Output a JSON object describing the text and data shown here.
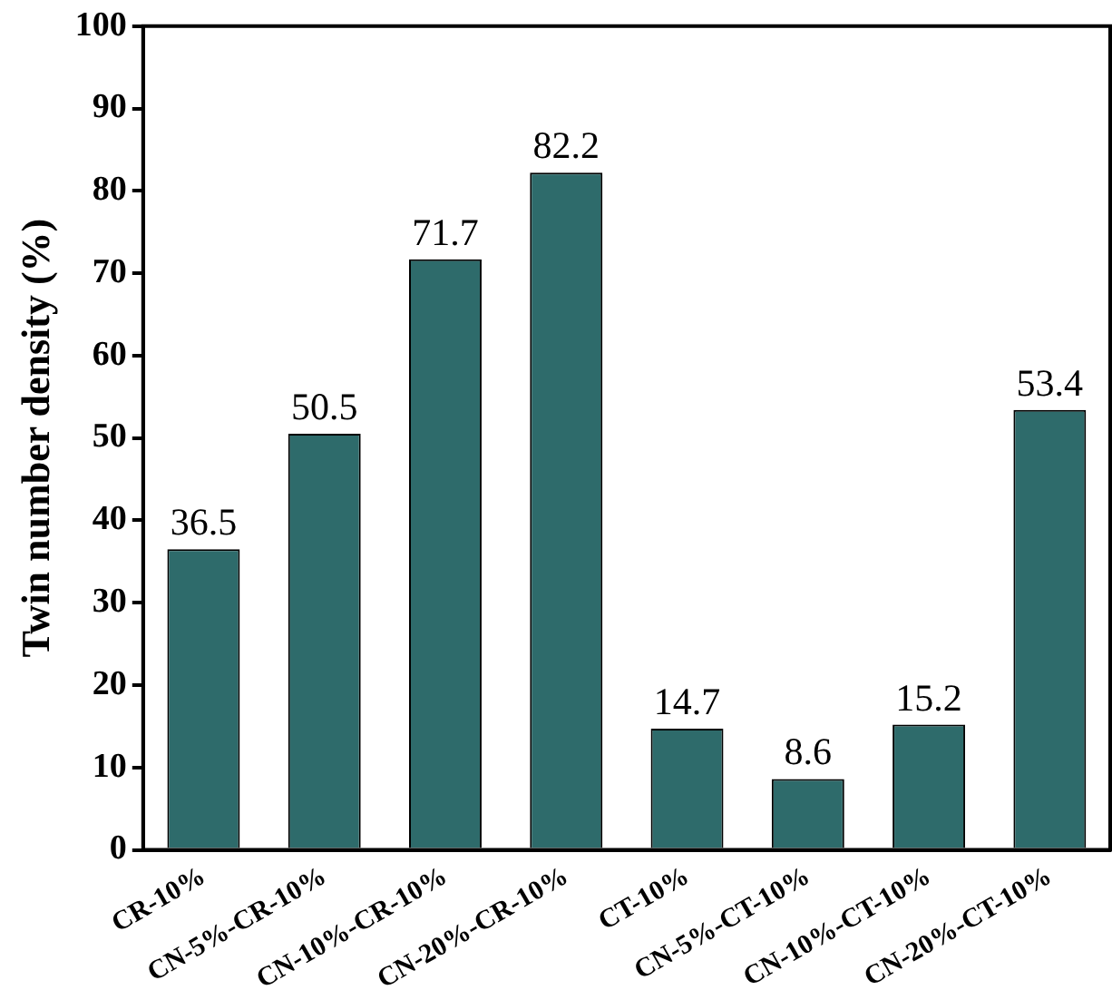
{
  "chart_data": {
    "type": "bar",
    "ylabel": "Twin number density (%)",
    "categories": [
      "CR-10%",
      "CN-5%-CR-10%",
      "CN-10%-CR-10%",
      "CN-20%-CR-10%",
      "CT-10%",
      "CN-5%-CT-10%",
      "CN-10%-CT-10%",
      "CN-20%-CT-10%"
    ],
    "values": [
      36.5,
      50.5,
      71.7,
      82.2,
      14.7,
      8.6,
      15.2,
      53.4
    ],
    "color": "#2e6b6b",
    "ylim": [
      0,
      100
    ],
    "yticks": [
      0,
      10,
      20,
      30,
      40,
      50,
      60,
      70,
      80,
      90,
      100
    ],
    "grid": false,
    "legend": false,
    "data_labels": true
  }
}
